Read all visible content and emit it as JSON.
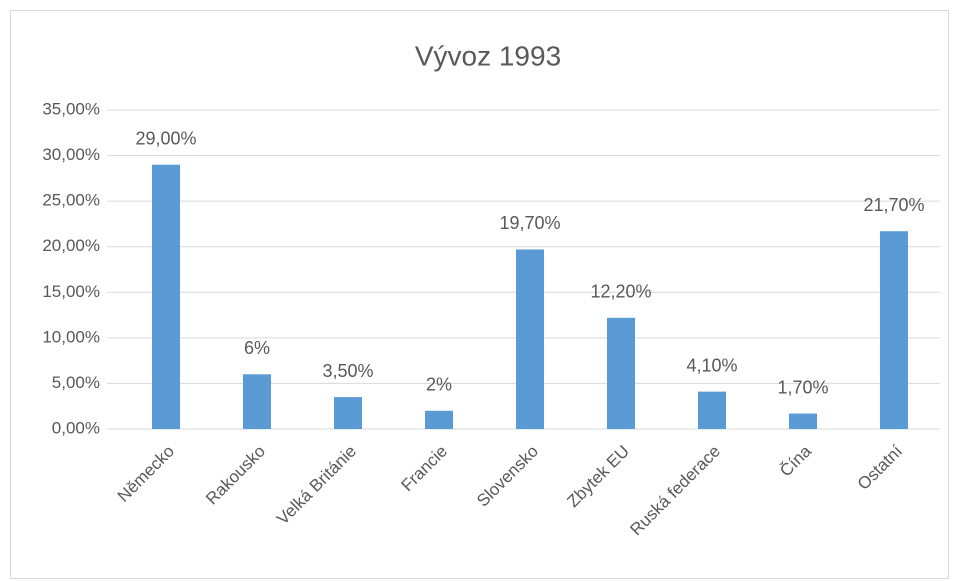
{
  "chart_data": {
    "type": "bar",
    "title": "Vývoz 1993",
    "categories": [
      "Německo",
      "Rakousko",
      "Velká Británie",
      "Francie",
      "Slovensko",
      "Zbytek EU",
      "Ruská federace",
      "Čína",
      "Ostatní"
    ],
    "values": [
      29,
      6,
      3.5,
      2,
      19.7,
      12.2,
      4.1,
      1.7,
      21.7
    ],
    "value_labels": [
      "29,00%",
      "6%",
      "3,50%",
      "2%",
      "19,70%",
      "12,20%",
      "4,10%",
      "1,70%",
      "21,70%"
    ],
    "color": "#5b9bd5",
    "ylim": [
      0,
      35
    ],
    "yticks": [
      {
        "value": 0,
        "label": "0,00%"
      },
      {
        "value": 5,
        "label": "5,00%"
      },
      {
        "value": 10,
        "label": "10,00%"
      },
      {
        "value": 15,
        "label": "15,00%"
      },
      {
        "value": 20,
        "label": "20,00%"
      },
      {
        "value": 25,
        "label": "25,00%"
      },
      {
        "value": 30,
        "label": "30,00%"
      },
      {
        "value": 35,
        "label": "35,00%"
      }
    ],
    "grid": true
  }
}
